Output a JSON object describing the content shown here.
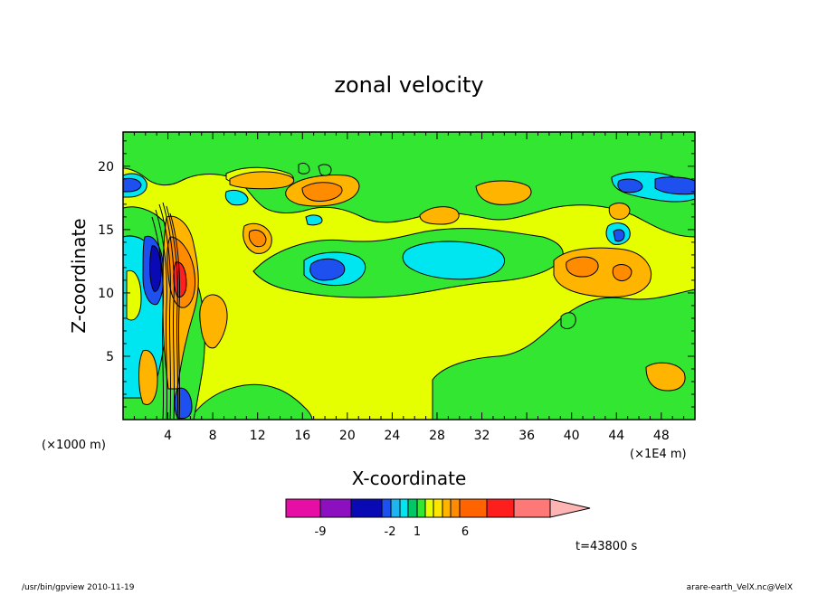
{
  "chart_data": {
    "type": "heatmap",
    "title": "zonal velocity",
    "xlabel": "X-coordinate",
    "ylabel": "Z-coordinate",
    "x_unit_left": "(×1000 m)",
    "x_unit_right": "(×1E4 m)",
    "xlim": [
      0,
      51
    ],
    "ylim": [
      0,
      22.7
    ],
    "x_ticks": [
      4,
      8,
      12,
      16,
      20,
      24,
      28,
      32,
      36,
      40,
      44,
      48
    ],
    "y_ticks": [
      5,
      10,
      15,
      20
    ],
    "colorbar": {
      "levels": [
        -12,
        -10,
        -9,
        -7,
        -5,
        -3,
        -2,
        -1,
        0,
        1,
        2,
        3,
        4,
        6,
        8,
        10,
        12
      ],
      "colors": [
        "#e60ea5",
        "#8c10c0",
        "#0a0ab4",
        "#1e50f0",
        "#1eb4f0",
        "#00e6f0",
        "#00c864",
        "#32e632",
        "#e6ff00",
        "#ffe600",
        "#ffb400",
        "#ff8c00",
        "#ff6400",
        "#ff1e1e",
        "#ff7878",
        "#ffb4b4"
      ],
      "tick_labels": [
        {
          "label": "-9",
          "value": -9
        },
        {
          "label": "-2",
          "value": -2
        },
        {
          "label": "1",
          "value": 1
        },
        {
          "label": "6",
          "value": 6
        }
      ],
      "extend": "max"
    },
    "grid": false,
    "colors": {
      "neutral": "#e6ff00",
      "weak_negative": "#32e632",
      "cyan": "#00e6f0",
      "blue": "#1e50f0",
      "dark_blue": "#0a0ab4",
      "orange": "#ffb400",
      "dark_orange": "#ff8c00",
      "red": "#ff1e1e"
    }
  },
  "annotations": {
    "time": "t=43800 s",
    "footer_left": "/usr/bin/gpview   2010-11-19",
    "footer_right": "arare-earth_VelX.nc@VelX"
  }
}
